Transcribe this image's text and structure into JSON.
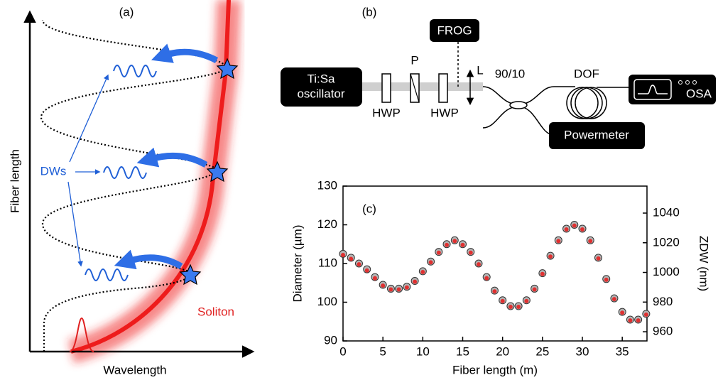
{
  "panel_a": {
    "label": "(a)",
    "y_axis": "Fiber length",
    "x_axis": "Wavelength",
    "dws": "DWs",
    "soliton": "Soliton"
  },
  "panel_b": {
    "label": "(b)",
    "frog": "FROG",
    "laser": [
      "Ti:Sa",
      "oscillator"
    ],
    "hwp1": "HWP",
    "polarizer": "P",
    "hwp2": "HWP",
    "lens": "L",
    "coupler": "90/10",
    "dof": "DOF",
    "osa": "OSA",
    "powermeter": "Powermeter"
  },
  "chart_data": {
    "type": "scatter",
    "label": "(c)",
    "x_label": "Fiber length (m)",
    "y_label": "Diameter (µm)",
    "y2_label": "ZDW (nm)",
    "x": [
      0,
      1,
      2,
      3,
      4,
      5,
      6,
      7,
      8,
      9,
      10,
      11,
      12,
      13,
      14,
      15,
      16,
      17,
      18,
      19,
      20,
      21,
      22,
      23,
      24,
      25,
      26,
      27,
      28,
      29,
      30,
      31,
      32,
      33,
      34,
      35,
      36,
      37,
      38
    ],
    "series": [
      {
        "color": "#b4b4b4",
        "values": [
          112.5,
          111.5,
          110,
          108.5,
          106.5,
          104.5,
          103.5,
          103.5,
          104,
          105.5,
          108,
          110.5,
          113,
          115,
          116,
          115,
          113,
          110,
          106.5,
          103,
          100.5,
          99,
          99,
          100.5,
          103.5,
          107.5,
          112,
          116,
          119,
          120,
          119,
          116,
          111.5,
          106,
          101,
          97.5,
          95.5,
          95.5,
          97
        ]
      },
      {
        "color": "#e03030",
        "values": [
          112.2,
          111.2,
          109.8,
          108.2,
          106.2,
          104.3,
          103.3,
          103.3,
          103.8,
          105.3,
          107.8,
          110.3,
          112.8,
          114.8,
          115.8,
          114.8,
          112.8,
          109.8,
          106.2,
          102.8,
          100.3,
          98.8,
          98.8,
          100.3,
          103.3,
          107.3,
          111.8,
          115.8,
          118.8,
          119.8,
          118.8,
          115.8,
          111.3,
          105.8,
          100.8,
          97.3,
          95.3,
          95.3,
          96.8
        ]
      }
    ],
    "xlim": [
      0,
      38.1
    ],
    "xticks": [
      0,
      5,
      10,
      15,
      20,
      25,
      30,
      35
    ],
    "ylim": [
      90,
      130
    ],
    "yticks": [
      90,
      100,
      110,
      120,
      130
    ],
    "y2lim": [
      953.8,
      1058.2
    ],
    "y2ticks": [
      960,
      980,
      1000,
      1020,
      1040
    ]
  }
}
